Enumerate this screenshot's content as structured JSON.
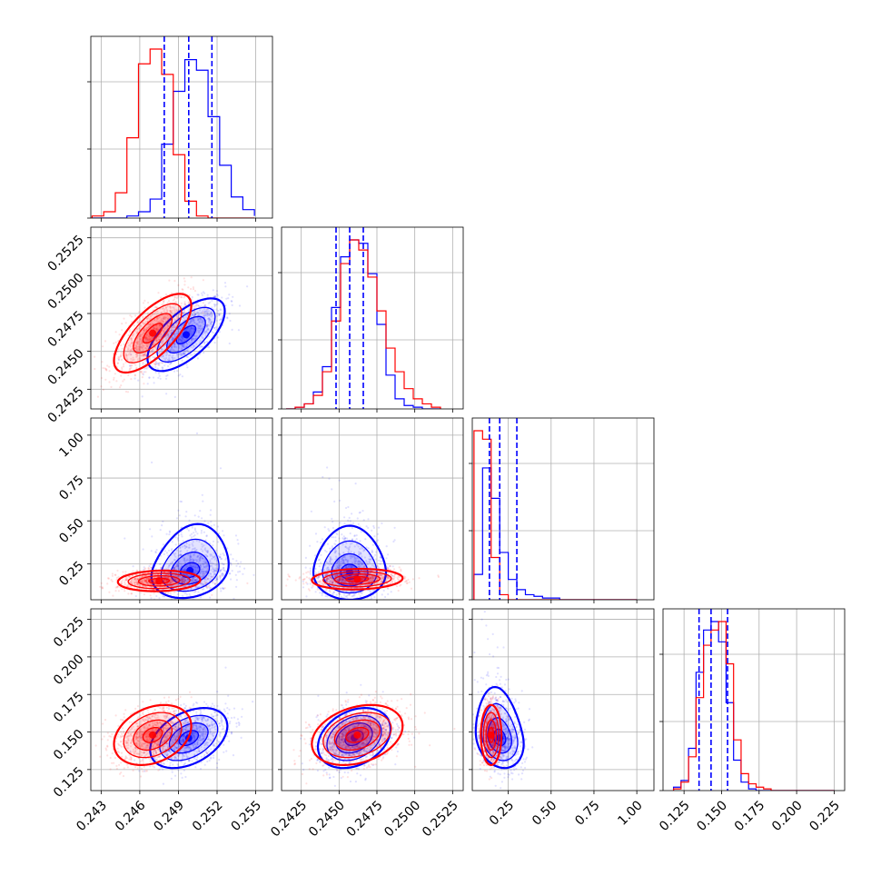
{
  "chart_data": {
    "type": "corner",
    "parameters": 4,
    "series": [
      {
        "name": "",
        "color": "#0000ff"
      },
      {
        "name": "",
        "color": "#ff0000"
      }
    ],
    "axes": [
      {
        "index": 0,
        "range": [
          0.2422,
          0.2563
        ],
        "ticks": [
          "0.243",
          "0.246",
          "0.249",
          "0.252",
          "0.255"
        ],
        "tick_values": [
          0.243,
          0.246,
          0.249,
          0.252,
          0.255
        ]
      },
      {
        "index": 1,
        "range": [
          0.2412,
          0.2532
        ],
        "ticks": [
          "0.2425",
          "0.2450",
          "0.2475",
          "0.2500",
          "0.2525"
        ],
        "tick_values": [
          0.2425,
          0.245,
          0.2475,
          0.25,
          0.2525
        ]
      },
      {
        "index": 2,
        "range": [
          0.04,
          1.1
        ],
        "ticks": [
          "0.25",
          "0.50",
          "0.75",
          "1.00"
        ],
        "tick_values": [
          0.25,
          0.5,
          0.75,
          1.0
        ]
      },
      {
        "index": 3,
        "range": [
          0.111,
          0.232
        ],
        "ticks": [
          "0.125",
          "0.150",
          "0.175",
          "0.200",
          "0.225"
        ],
        "tick_values": [
          0.125,
          0.15,
          0.175,
          0.2,
          0.225
        ]
      }
    ],
    "grid": true,
    "quantile_lines": [
      [
        0.2479,
        0.2498,
        0.2516
      ],
      [
        0.2448,
        0.2457,
        0.2466
      ],
      [
        0.14,
        0.2,
        0.3
      ],
      [
        0.135,
        0.143,
        0.154
      ]
    ],
    "histograms": [
      {
        "bins": [
          0.2423,
          0.2432,
          0.2441,
          0.245,
          0.2459,
          0.2468,
          0.2477,
          0.2486,
          0.2495,
          0.2504,
          0.2513,
          0.2522,
          0.2531,
          0.254,
          0.2549
        ],
        "blue": [
          0,
          0,
          0,
          1,
          3,
          9,
          35,
          60,
          75,
          70,
          48,
          25,
          10,
          4,
          1
        ],
        "red": [
          1,
          3,
          12,
          38,
          73,
          80,
          68,
          30,
          8,
          1,
          0,
          0,
          0,
          0,
          0
        ]
      },
      {
        "bins": [
          0.2415,
          0.2421,
          0.2427,
          0.2433,
          0.2439,
          0.2445,
          0.2451,
          0.2457,
          0.2463,
          0.2469,
          0.2475,
          0.2481,
          0.2487,
          0.2493,
          0.2499,
          0.2505,
          0.2511,
          0.2517
        ],
        "blue": [
          0,
          1,
          3,
          10,
          25,
          60,
          90,
          100,
          98,
          80,
          50,
          20,
          6,
          2,
          1,
          0,
          0,
          0
        ],
        "red": [
          0,
          1,
          3,
          8,
          22,
          52,
          86,
          100,
          94,
          78,
          58,
          36,
          22,
          12,
          6,
          3,
          1,
          0
        ]
      },
      {
        "bins": [
          0.05,
          0.1,
          0.15,
          0.2,
          0.25,
          0.3,
          0.35,
          0.4,
          0.45,
          0.5,
          0.55,
          0.6,
          0.65,
          0.7,
          0.8,
          0.9,
          1.0
        ],
        "blue": [
          15,
          78,
          60,
          28,
          12,
          6,
          3,
          2,
          1,
          1,
          0,
          0,
          0,
          0,
          0,
          0
        ],
        "red": [
          100,
          95,
          25,
          3,
          0,
          0,
          0,
          0,
          0,
          0,
          0,
          0,
          0,
          0,
          0,
          0
        ]
      },
      {
        "bins": [
          0.118,
          0.123,
          0.128,
          0.133,
          0.138,
          0.143,
          0.148,
          0.153,
          0.158,
          0.163,
          0.168,
          0.173,
          0.178,
          0.183,
          0.188,
          0.2,
          0.225
        ],
        "blue": [
          2,
          6,
          25,
          70,
          95,
          100,
          88,
          52,
          18,
          5,
          1,
          0,
          0,
          0,
          0,
          0
        ],
        "red": [
          1,
          5,
          20,
          55,
          86,
          95,
          100,
          75,
          30,
          10,
          4,
          2,
          1,
          0,
          0,
          0
        ]
      }
    ],
    "scatter": [
      {
        "x": 0,
        "y": 1,
        "blue": {
          "mean": [
            0.2496,
            0.2461
          ],
          "sd": [
            0.0015,
            0.0012
          ],
          "corr": 0.65,
          "skew": 0
        },
        "red": {
          "mean": [
            0.247,
            0.2462
          ],
          "sd": [
            0.0015,
            0.0013
          ],
          "corr": 0.7,
          "skew": 0
        }
      },
      {
        "x": 0,
        "y": 2,
        "blue": {
          "mean": [
            0.2499,
            0.21
          ],
          "sd": [
            0.0015,
            0.08
          ],
          "corr": 0.2,
          "skew": 1
        },
        "red": {
          "mean": [
            0.2475,
            0.15
          ],
          "sd": [
            0.0016,
            0.03
          ],
          "corr": 0.1,
          "skew": 0
        }
      },
      {
        "x": 1,
        "y": 2,
        "blue": {
          "mean": [
            0.2457,
            0.2
          ],
          "sd": [
            0.0012,
            0.08
          ],
          "corr": 0.0,
          "skew": 1
        },
        "red": {
          "mean": [
            0.2462,
            0.16
          ],
          "sd": [
            0.0015,
            0.03
          ],
          "corr": 0.1,
          "skew": 0
        }
      },
      {
        "x": 0,
        "y": 3,
        "blue": {
          "mean": [
            0.2498,
            0.146
          ],
          "sd": [
            0.0015,
            0.01
          ],
          "corr": 0.4,
          "skew": 0
        },
        "red": {
          "mean": [
            0.247,
            0.148
          ],
          "sd": [
            0.0015,
            0.01
          ],
          "corr": 0.3,
          "skew": 0
        }
      },
      {
        "x": 1,
        "y": 3,
        "blue": {
          "mean": [
            0.246,
            0.146
          ],
          "sd": [
            0.0012,
            0.01
          ],
          "corr": 0.3,
          "skew": 0
        },
        "red": {
          "mean": [
            0.2462,
            0.148
          ],
          "sd": [
            0.0015,
            0.01
          ],
          "corr": 0.3,
          "skew": 0
        }
      },
      {
        "x": 2,
        "y": 3,
        "blue": {
          "mean": [
            0.2,
            0.146
          ],
          "sd": [
            0.07,
            0.01
          ],
          "corr": -0.2,
          "skew": 1
        },
        "red": {
          "mean": [
            0.15,
            0.148
          ],
          "sd": [
            0.03,
            0.01
          ],
          "corr": 0.0,
          "skew": 0
        }
      }
    ]
  }
}
